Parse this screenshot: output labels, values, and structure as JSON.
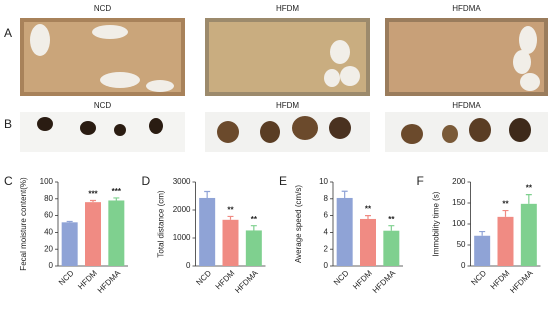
{
  "photo_panels": [
    {
      "letter": "A",
      "labels": [
        "NCD",
        "HFDM",
        "HFDMA"
      ]
    },
    {
      "letter": "B",
      "labels": [
        "NCD",
        "HFDM",
        "HFDMA"
      ]
    }
  ],
  "chart_data": [
    {
      "letter": "C",
      "type": "bar",
      "ylabel": "Fecal moisture content(%)",
      "categories": [
        "NCD",
        "HFDM",
        "HFDMA"
      ],
      "values": [
        52,
        76,
        78
      ],
      "errors": [
        1,
        2,
        3
      ],
      "colors": [
        "#8fa3d6",
        "#f08b83",
        "#7fd08f"
      ],
      "significance": [
        null,
        "***",
        "***"
      ],
      "ylim": [
        0,
        100
      ],
      "yticks": [
        0,
        20,
        40,
        60,
        80,
        100
      ]
    },
    {
      "letter": "D",
      "type": "bar",
      "ylabel": "Total distance  (cm)",
      "categories": [
        "NCD",
        "HFDM",
        "HFDMA"
      ],
      "values": [
        2430,
        1650,
        1270
      ],
      "errors": [
        230,
        120,
        170
      ],
      "colors": [
        "#8fa3d6",
        "#f08b83",
        "#7fd08f"
      ],
      "significance": [
        null,
        "**",
        "**"
      ],
      "ylim": [
        0,
        3000
      ],
      "yticks": [
        0,
        1000,
        2000,
        3000
      ]
    },
    {
      "letter": "E",
      "type": "bar",
      "ylabel": "Average speed  (cm/s)",
      "categories": [
        "NCD",
        "HFDM",
        "HFDMA"
      ],
      "values": [
        8.1,
        5.6,
        4.2
      ],
      "errors": [
        0.8,
        0.4,
        0.6
      ],
      "colors": [
        "#8fa3d6",
        "#f08b83",
        "#7fd08f"
      ],
      "significance": [
        null,
        "**",
        "**"
      ],
      "ylim": [
        0,
        10
      ],
      "yticks": [
        0,
        2,
        4,
        6,
        8,
        10
      ]
    },
    {
      "letter": "F",
      "type": "bar",
      "ylabel": "Immobility time  (s)",
      "categories": [
        "NCD",
        "HFDM",
        "HFDMA"
      ],
      "values": [
        72,
        117,
        148
      ],
      "errors": [
        10,
        15,
        22
      ],
      "colors": [
        "#8fa3d6",
        "#f08b83",
        "#7fd08f"
      ],
      "significance": [
        null,
        "**",
        "**"
      ],
      "ylim": [
        0,
        200
      ],
      "yticks": [
        0,
        50,
        100,
        150,
        200
      ]
    }
  ]
}
